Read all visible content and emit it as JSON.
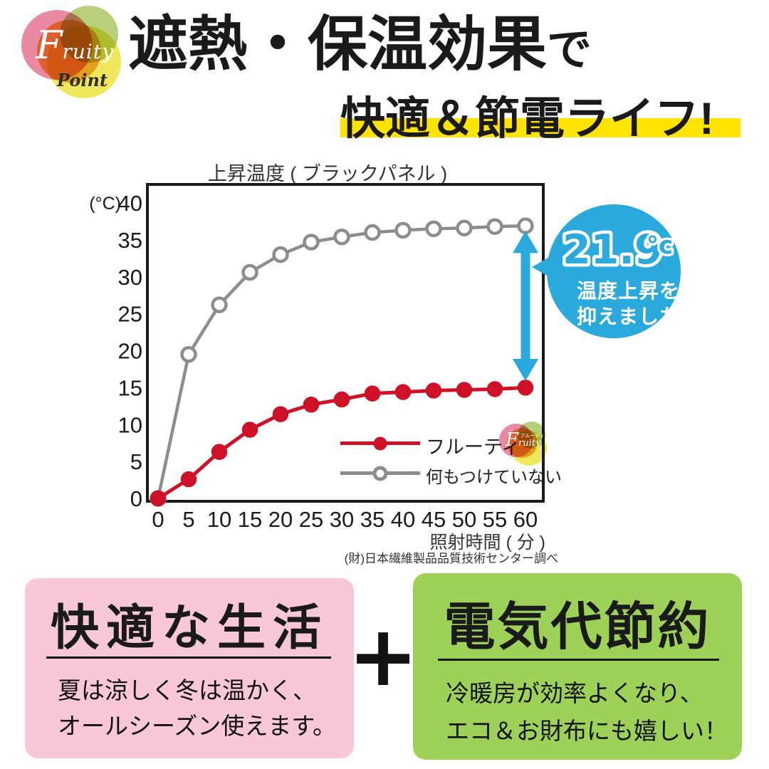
{
  "logo": {
    "f": "F",
    "rest": "ruity",
    "sub": "Point",
    "katakana": "フルーティ"
  },
  "header": {
    "title_line1": "遮熱・保温効果",
    "title_line1_suffix": "で",
    "title_line2": "快適＆節電ライフ!",
    "highlight_color": "#FFE400"
  },
  "chart_data": {
    "type": "line",
    "title": "上昇温度 ( ブラックパネル )",
    "y_unit": "(°C)",
    "xlabel": "照射時間 ( 分 )",
    "ylabel": "",
    "x": [
      0,
      5,
      10,
      15,
      20,
      25,
      30,
      35,
      40,
      45,
      50,
      55,
      60
    ],
    "y_ticks": [
      0,
      5,
      10,
      15,
      20,
      25,
      30,
      35,
      40
    ],
    "ylim": [
      0,
      40
    ],
    "grid": false,
    "legend_position": "inside-bottom-right",
    "series": [
      {
        "name": "フルーティ",
        "color": "#CE1126",
        "marker": "filled",
        "values": [
          0,
          2.6,
          6.3,
          9.3,
          11.4,
          12.7,
          13.4,
          14.2,
          14.4,
          14.6,
          14.7,
          14.8,
          15.0
        ]
      },
      {
        "name": "何もつけていない",
        "color": "#8D8D8D",
        "marker": "open",
        "values": [
          0,
          19.5,
          26.2,
          30.6,
          33.0,
          34.7,
          35.4,
          36.0,
          36.3,
          36.5,
          36.6,
          36.8,
          36.9
        ]
      }
    ],
    "annotation": {
      "arrow_x": 60,
      "arrow_y_top": 36.2,
      "arrow_y_bottom": 15.9,
      "color": "#29A9DC"
    },
    "source": "(財)日本繊維製品品質技術センター調べ"
  },
  "bubble": {
    "value": "21.9",
    "unit": "°c",
    "line1": "温度上昇を",
    "line2": "抑えました！",
    "color": "#29A9DC"
  },
  "cards": {
    "plus": "+",
    "left": {
      "title": "快適な生活",
      "body_line1": "夏は涼しく冬は温かく、",
      "body_line2": "オールシーズン使えます。",
      "bg": "#F8C8DA"
    },
    "right": {
      "title": "電気代節約",
      "body_line1": "冷暖房が効率よくなり、",
      "body_line2": "エコ＆お財布にも嬉しい！",
      "bg": "#9ED158"
    }
  }
}
